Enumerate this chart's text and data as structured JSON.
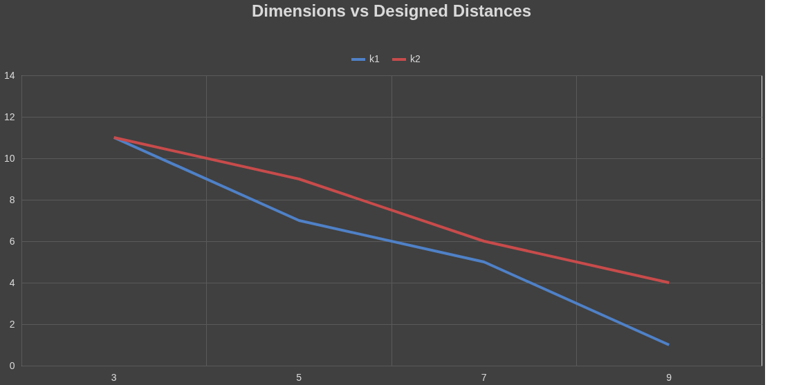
{
  "chart_data": {
    "type": "line",
    "title": "Dimensions vs Designed Distances",
    "categories": [
      "3",
      "5",
      "7",
      "9"
    ],
    "series": [
      {
        "name": "k1",
        "color": "#4f81c7",
        "values": [
          11,
          7,
          5,
          1
        ]
      },
      {
        "name": "k2",
        "color": "#c84b4b",
        "values": [
          11,
          9,
          6,
          4
        ]
      }
    ],
    "ylim": [
      0,
      14
    ],
    "yticks": [
      0,
      2,
      4,
      6,
      8,
      10,
      12,
      14
    ],
    "grid": true,
    "legend": "top",
    "marker": "none",
    "line_style": "solid"
  }
}
